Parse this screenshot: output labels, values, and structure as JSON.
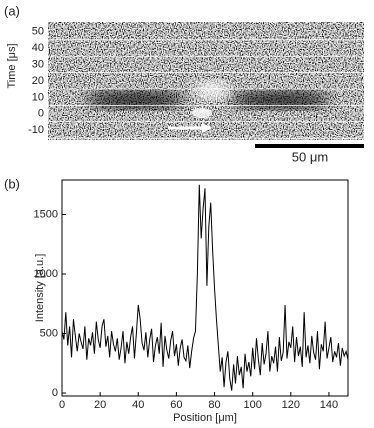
{
  "chart_data": [
    {
      "type": "image",
      "panel_label": "(a)",
      "ylabel": "Time [μs]",
      "ylim": [
        -16,
        56
      ],
      "yticks": [
        50,
        40,
        30,
        20,
        10,
        0,
        -10
      ],
      "grid": true,
      "scale_bar": "50 μm"
    },
    {
      "type": "line",
      "panel_label": "(b)",
      "xlabel": "Position [μm]",
      "ylabel": "Intensity [a.u.]",
      "xlim": [
        0,
        150
      ],
      "ylim": [
        -25,
        1790
      ],
      "xticks": [
        0,
        20,
        40,
        60,
        80,
        100,
        120,
        140
      ],
      "yticks": [
        0,
        500,
        1000,
        1500
      ],
      "color": "#000000",
      "x": [
        0,
        1,
        2,
        3,
        4,
        5,
        6,
        7,
        8,
        9,
        10,
        11,
        12,
        13,
        14,
        15,
        16,
        17,
        18,
        19,
        20,
        21,
        22,
        23,
        24,
        25,
        26,
        27,
        28,
        29,
        30,
        31,
        32,
        33,
        34,
        35,
        36,
        37,
        38,
        39,
        40,
        41,
        42,
        43,
        44,
        45,
        46,
        47,
        48,
        49,
        50,
        51,
        52,
        53,
        54,
        55,
        56,
        57,
        58,
        59,
        60,
        61,
        62,
        63,
        64,
        65,
        66,
        67,
        68,
        69,
        70,
        71,
        72,
        73,
        74,
        75,
        76,
        77,
        78,
        79,
        80,
        81,
        82,
        83,
        84,
        85,
        86,
        87,
        88,
        89,
        90,
        91,
        92,
        93,
        94,
        95,
        96,
        97,
        98,
        99,
        100,
        101,
        102,
        103,
        104,
        105,
        106,
        107,
        108,
        109,
        110,
        111,
        112,
        113,
        114,
        115,
        116,
        117,
        118,
        119,
        120,
        121,
        122,
        123,
        124,
        125,
        126,
        127,
        128,
        129,
        130,
        131,
        132,
        133,
        134,
        135,
        136,
        137,
        138,
        139,
        140,
        141,
        142,
        143,
        144,
        145,
        146,
        147,
        148,
        149,
        150
      ],
      "values": [
        520,
        450,
        680,
        400,
        560,
        300,
        620,
        480,
        350,
        500,
        430,
        370,
        560,
        280,
        460,
        400,
        510,
        330,
        600,
        450,
        380,
        560,
        620,
        390,
        480,
        300,
        520,
        410,
        350,
        460,
        280,
        380,
        520,
        250,
        430,
        330,
        470,
        560,
        290,
        500,
        740,
        620,
        420,
        360,
        510,
        300,
        450,
        540,
        260,
        400,
        470,
        330,
        590,
        220,
        480,
        360,
        290,
        440,
        520,
        310,
        410,
        230,
        380,
        450,
        300,
        270,
        400,
        210,
        350,
        460,
        520,
        1000,
        1750,
        1300,
        1550,
        1720,
        900,
        1400,
        1600,
        1200,
        880,
        620,
        400,
        180,
        300,
        50,
        260,
        350,
        120,
        20,
        240,
        80,
        310,
        150,
        220,
        40,
        330,
        180,
        260,
        140,
        380,
        200,
        460,
        280,
        150,
        420,
        240,
        330,
        520,
        180,
        310,
        250,
        390,
        180,
        470,
        270,
        340,
        740,
        290,
        430,
        380,
        560,
        260,
        470,
        310,
        390,
        220,
        680,
        300,
        400,
        250,
        480,
        340,
        280,
        520,
        200,
        410,
        350,
        600,
        290,
        380,
        470,
        260,
        350,
        300,
        420,
        230,
        380,
        310,
        350,
        280
      ]
    }
  ]
}
